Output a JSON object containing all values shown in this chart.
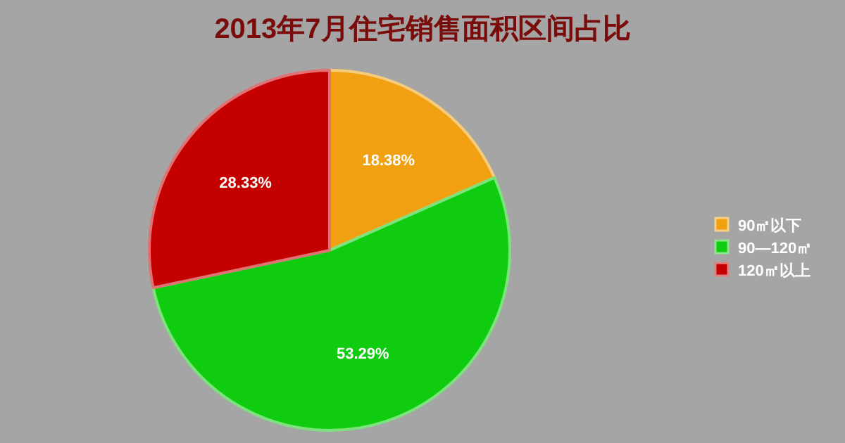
{
  "chart_data": {
    "type": "pie",
    "title": "2013年7月住宅销售面积区间占比",
    "categories": [
      "90㎡以下",
      "90—120㎡",
      "120㎡以上"
    ],
    "values": [
      18.38,
      53.29,
      28.33
    ],
    "colors": [
      "#f0a010",
      "#10cc10",
      "#c40000"
    ],
    "value_labels": [
      "18.38%",
      "53.29%",
      "28.33%"
    ],
    "legend": "right"
  }
}
